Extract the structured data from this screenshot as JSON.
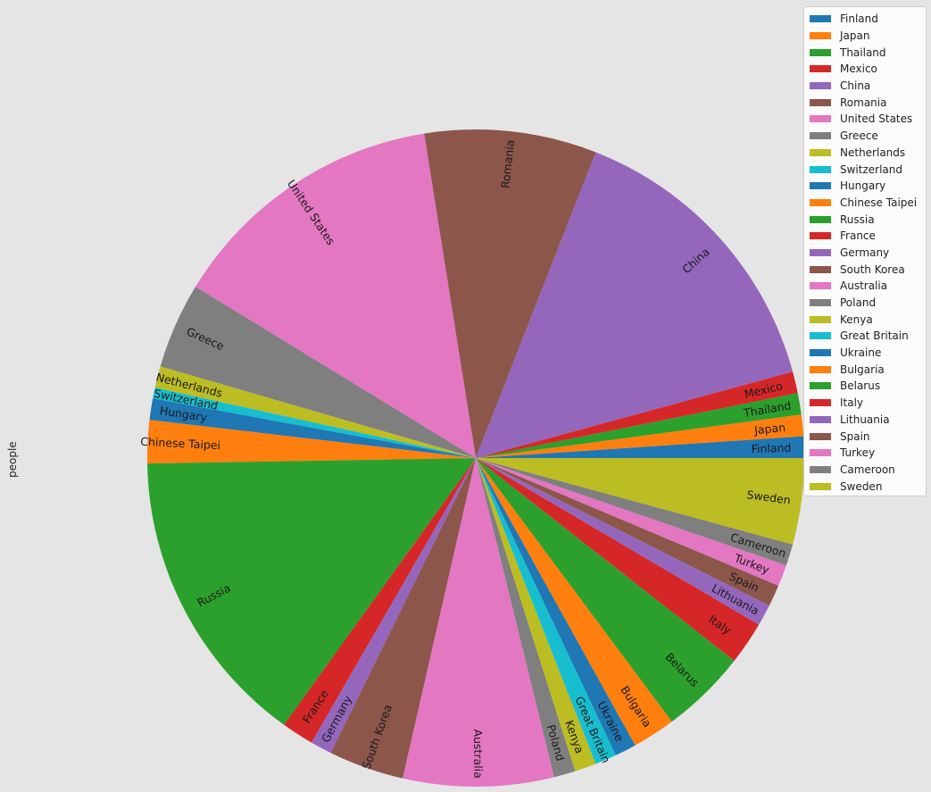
{
  "chart_data": {
    "type": "pie",
    "ylabel": "people",
    "legend_position": "top-right",
    "categories": [
      "Finland",
      "Japan",
      "Thailand",
      "Mexico",
      "China",
      "Romania",
      "United States",
      "Greece",
      "Netherlands",
      "Switzerland",
      "Hungary",
      "Chinese Taipei",
      "Russia",
      "France",
      "Germany",
      "South Korea",
      "Australia",
      "Poland",
      "Kenya",
      "Great Britain",
      "Ukraine",
      "Bulgaria",
      "Belarus",
      "Italy",
      "Lithuania",
      "Spain",
      "Turkey",
      "Cameroon",
      "Sweden"
    ],
    "values": [
      1,
      1,
      1,
      1,
      14,
      8,
      13,
      4,
      1,
      0.5,
      1,
      2,
      14,
      1.5,
      1,
      3.5,
      7,
      1,
      1,
      1,
      1,
      2,
      4,
      2,
      1,
      1,
      1,
      1,
      4
    ],
    "colors": [
      "#1f77b4",
      "#ff7f0e",
      "#2ca02c",
      "#d62728",
      "#9467bd",
      "#8c564b",
      "#e377c2",
      "#7f7f7f",
      "#bcbd22",
      "#17becf",
      "#1f77b4",
      "#ff7f0e",
      "#2ca02c",
      "#d62728",
      "#9467bd",
      "#8c564b",
      "#e377c2",
      "#7f7f7f",
      "#bcbd22",
      "#17becf",
      "#1f77b4",
      "#ff7f0e",
      "#2ca02c",
      "#d62728",
      "#9467bd",
      "#8c564b",
      "#e377c2",
      "#7f7f7f",
      "#bcbd22"
    ],
    "start_angle": 0,
    "direction": "counterclockwise",
    "rotate_labels": true
  }
}
